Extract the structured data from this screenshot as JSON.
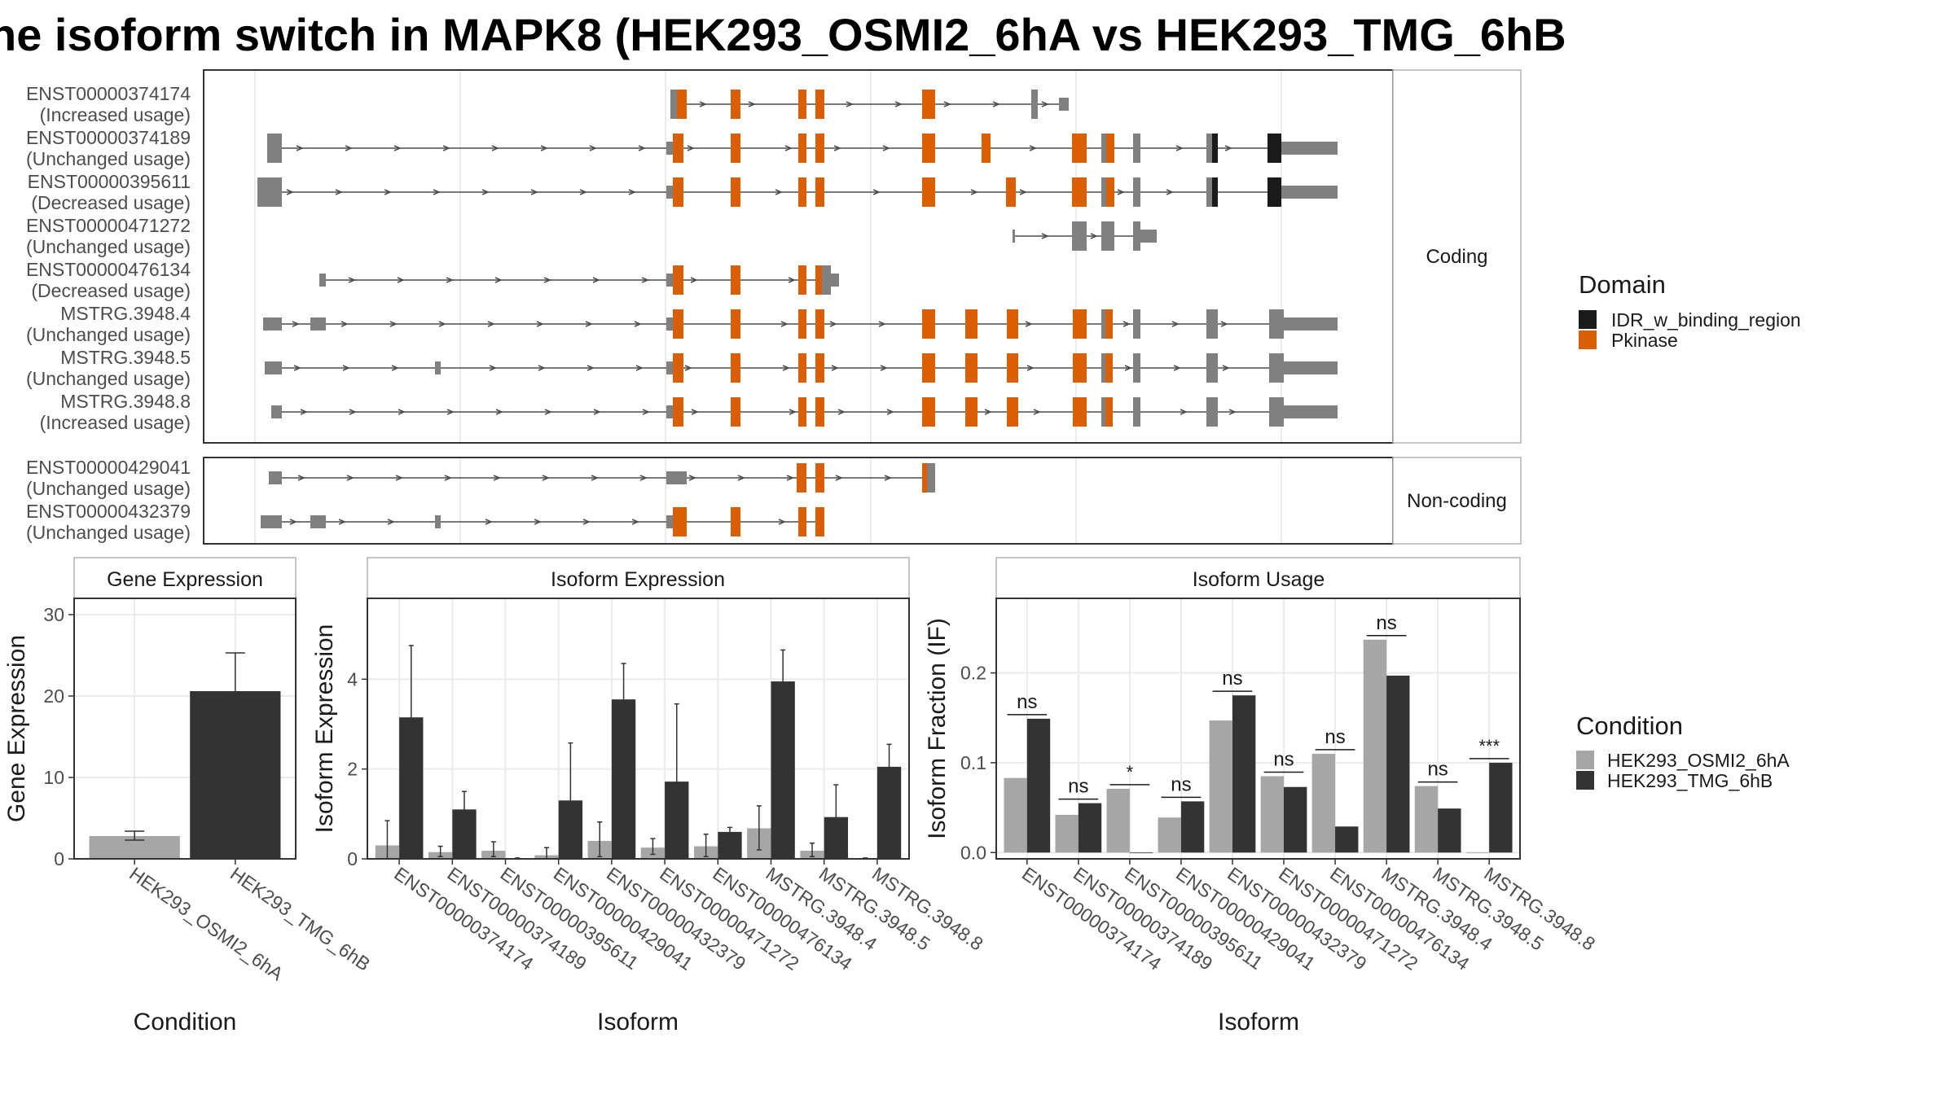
{
  "title": "he isoform switch in MAPK8 (HEK293_OSMI2_6hA vs HEK293_TMG_6hB",
  "colors": {
    "intron": "#4d4d4d",
    "exon_noncds": "#808080",
    "domain_idr": "#1a1a1a",
    "domain_pkinase": "#d95f02",
    "cond_a": "#a6a6a6",
    "cond_b": "#333333",
    "grid": "#ebebeb",
    "strip_bg": "#ffffff",
    "panel_border": "#333333"
  },
  "structure": {
    "facets": [
      "Coding",
      "Non-coding"
    ],
    "legend_title": "Domain",
    "legend_items": [
      {
        "label": "IDR_w_binding_region",
        "color": "#1a1a1a"
      },
      {
        "label": "Pkinase",
        "color": "#d95f02"
      }
    ],
    "isoforms": [
      {
        "id": "ENST00000374174",
        "usage": "(Increased usage)",
        "facet": "Coding"
      },
      {
        "id": "ENST00000374189",
        "usage": "(Unchanged usage)",
        "facet": "Coding"
      },
      {
        "id": "ENST00000395611",
        "usage": "(Decreased usage)",
        "facet": "Coding"
      },
      {
        "id": "ENST00000471272",
        "usage": "(Unchanged usage)",
        "facet": "Coding"
      },
      {
        "id": "ENST00000476134",
        "usage": "(Decreased usage)",
        "facet": "Coding"
      },
      {
        "id": "MSTRG.3948.4",
        "usage": "(Unchanged usage)",
        "facet": "Coding"
      },
      {
        "id": "MSTRG.3948.5",
        "usage": "(Unchanged usage)",
        "facet": "Coding"
      },
      {
        "id": "MSTRG.3948.8",
        "usage": "(Increased usage)",
        "facet": "Coding"
      },
      {
        "id": "ENST00000429041",
        "usage": "(Unchanged usage)",
        "facet": "Non-coding"
      },
      {
        "id": "ENST00000432379",
        "usage": "(Unchanged usage)",
        "facet": "Non-coding"
      }
    ]
  },
  "chart_data": [
    {
      "type": "bar",
      "title": "Gene Expression",
      "xlabel": "Condition",
      "ylabel": "Gene Expression",
      "ylim": [
        0,
        32
      ],
      "yticks": [
        0,
        10,
        20,
        30
      ],
      "categories": [
        "HEK293_OSMI2_6hA",
        "HEK293_TMG_6hB"
      ],
      "values": [
        2.8,
        20.6
      ],
      "error_low": [
        2.3,
        16.0
      ],
      "error_high": [
        3.4,
        25.3
      ]
    },
    {
      "type": "bar",
      "title": "Isoform Expression",
      "xlabel": "Isoform",
      "ylabel": "Isoform Expression",
      "ylim": [
        0,
        5.8
      ],
      "yticks": [
        0,
        2,
        4
      ],
      "categories": [
        "ENST00000374174",
        "ENST00000374189",
        "ENST00000395611",
        "ENST00000429041",
        "ENST00000432379",
        "ENST00000471272",
        "ENST00000476134",
        "MSTRG.3948.4",
        "MSTRG.3948.5",
        "MSTRG.3948.8"
      ],
      "series": [
        {
          "name": "HEK293_OSMI2_6hA",
          "values": [
            0.3,
            0.15,
            0.18,
            0.08,
            0.4,
            0.25,
            0.28,
            0.68,
            0.18,
            0.01
          ],
          "error_low": [
            0.0,
            0.05,
            0.05,
            0.0,
            0.05,
            0.1,
            0.05,
            0.2,
            0.05,
            0.0
          ],
          "error_high": [
            0.85,
            0.28,
            0.38,
            0.25,
            0.82,
            0.45,
            0.55,
            1.18,
            0.35,
            0.02
          ]
        },
        {
          "name": "HEK293_TMG_6hB",
          "values": [
            3.15,
            1.1,
            0.01,
            1.3,
            3.55,
            1.72,
            0.6,
            3.95,
            0.93,
            2.05
          ],
          "error_low": [
            1.6,
            0.75,
            0.0,
            0.0,
            2.75,
            0.0,
            0.5,
            3.25,
            0.3,
            1.6
          ],
          "error_high": [
            4.75,
            1.5,
            0.02,
            2.58,
            4.35,
            3.45,
            0.7,
            4.65,
            1.65,
            2.55
          ]
        }
      ]
    },
    {
      "type": "bar",
      "title": "Isoform Usage",
      "xlabel": "Isoform",
      "ylabel": "Isoform Fraction (IF)",
      "ylim": [
        -0.007,
        0.283
      ],
      "yticks": [
        0.0,
        0.1,
        0.2
      ],
      "ytick_labels": [
        "0.0",
        "0.1",
        "0.2"
      ],
      "categories": [
        "ENST00000374174",
        "ENST00000374189",
        "ENST00000395611",
        "ENST00000429041",
        "ENST00000432379",
        "ENST00000471272",
        "ENST00000476134",
        "MSTRG.3948.4",
        "MSTRG.3948.5",
        "MSTRG.3948.8"
      ],
      "series": [
        {
          "name": "HEK293_OSMI2_6hA",
          "values": [
            0.083,
            0.042,
            0.071,
            0.039,
            0.147,
            0.085,
            0.11,
            0.237,
            0.074,
            0.0
          ]
        },
        {
          "name": "HEK293_TMG_6hB",
          "values": [
            0.149,
            0.055,
            0.0,
            0.057,
            0.175,
            0.073,
            0.029,
            0.197,
            0.049,
            0.1
          ]
        }
      ],
      "significance": [
        "ns",
        "ns",
        "*",
        "ns",
        "ns",
        "ns",
        "ns",
        "ns",
        "ns",
        "***"
      ]
    }
  ],
  "condition_legend": {
    "title": "Condition",
    "items": [
      {
        "label": "HEK293_OSMI2_6hA",
        "color": "#a6a6a6"
      },
      {
        "label": "HEK293_TMG_6hB",
        "color": "#333333"
      }
    ]
  }
}
